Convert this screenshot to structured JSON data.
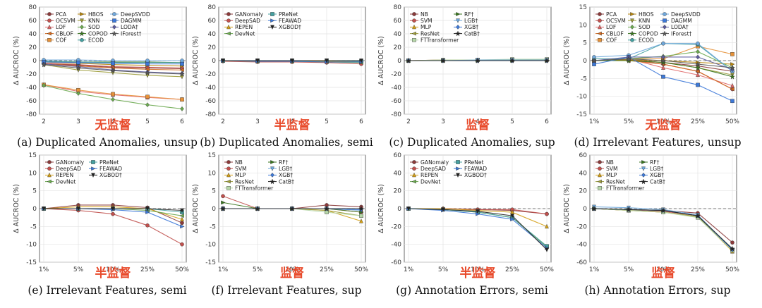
{
  "colors": {
    "PCA": "#8b3a3a",
    "OCSVM": "#c0504d",
    "LOF": "#e06666",
    "CBLOF": "#d2691e",
    "COF": "#e69138",
    "HBOS": "#b8860b",
    "KNN": "#9c9c3a",
    "SOD": "#6aa84f",
    "COPOD": "#38761d",
    "ECOD": "#45a0a0",
    "DeepSVDD": "#6fa8dc",
    "DAGMM": "#3c78d8",
    "LODA": "#5b5b9e",
    "IForest": "#555555",
    "GANomaly": "#8b3a3a",
    "DeepSAD": "#c0504d",
    "REPEN": "#d4a017",
    "DevNet": "#6aa84f",
    "PReNet": "#45a0a0",
    "FEAWAD": "#3c78d8",
    "XGBOD": "#222222",
    "NB": "#8b3a3a",
    "SVM": "#c0504d",
    "MLP": "#d4a017",
    "ResNet": "#9c9c3a",
    "FTTransformer": "#b6d7a8",
    "RF": "#38761d",
    "LGB": "#6fa8dc",
    "XGB": "#3c78d8",
    "CatB": "#222222",
    "baseline": "#777777",
    "annotation": "#e8492a"
  },
  "annotations": [
    "无监督",
    "半监督",
    "监督",
    "无监督",
    "半监督",
    "监督",
    "半监督",
    "监督"
  ],
  "chart_data": [
    {
      "id": "a",
      "type": "line",
      "title": "(a) Duplicated Anomalies, unsup",
      "annotation": "无监督",
      "xlabel": "",
      "ylabel": "Δ AUCROC (%)",
      "categories": [
        "2",
        "3",
        "4",
        "5",
        "6"
      ],
      "ylim": [
        -80,
        80
      ],
      "yticks": [
        -80,
        -60,
        -40,
        -20,
        0,
        20,
        40,
        60,
        80
      ],
      "legend": {
        "position": "top-left",
        "columns": 3,
        "entries": [
          "PCA",
          "OCSVM",
          "LOF",
          "CBLOF",
          "COF",
          "HBOS",
          "KNN",
          "SOD",
          "COPOD",
          "ECOD",
          "DeepSVDD",
          "DAGMM",
          "LODA†",
          "IForest†"
        ]
      },
      "series": [
        {
          "name": "PCA",
          "values": [
            -4,
            -7,
            -10,
            -11,
            -12
          ]
        },
        {
          "name": "OCSVM",
          "values": [
            -4,
            -6,
            -9,
            -10,
            -11
          ]
        },
        {
          "name": "LOF",
          "values": [
            -36,
            -46,
            -51,
            -55,
            -58
          ]
        },
        {
          "name": "CBLOF",
          "values": [
            -5,
            -8,
            -11,
            -13,
            -14
          ]
        },
        {
          "name": "COF",
          "values": [
            -36,
            -44,
            -50,
            -54,
            -58
          ]
        },
        {
          "name": "HBOS",
          "values": [
            -2,
            -4,
            -6,
            -7,
            -8
          ]
        },
        {
          "name": "KNN",
          "values": [
            -6,
            -14,
            -18,
            -22,
            -24
          ]
        },
        {
          "name": "SOD",
          "values": [
            -37,
            -49,
            -58,
            -66,
            -72
          ]
        },
        {
          "name": "COPOD",
          "values": [
            -1,
            -2,
            -2,
            -2,
            -3
          ]
        },
        {
          "name": "ECOD",
          "values": [
            -1,
            -2,
            -3,
            -3,
            -3
          ]
        },
        {
          "name": "DeepSVDD",
          "values": [
            1,
            1,
            0,
            0,
            0
          ]
        },
        {
          "name": "DAGMM",
          "values": [
            -2,
            -3,
            -4,
            -5,
            -5
          ]
        },
        {
          "name": "LODA†",
          "values": [
            -5,
            -9,
            -14,
            -17,
            -19
          ]
        },
        {
          "name": "IForest†",
          "values": [
            -6,
            -11,
            -15,
            -18,
            -20
          ]
        }
      ]
    },
    {
      "id": "b",
      "type": "line",
      "title": "(b) Duplicated Anomalies, semi",
      "annotation": "半监督",
      "xlabel": "",
      "ylabel": "Δ AUCROC (%)",
      "categories": [
        "2",
        "3",
        "4",
        "5",
        "6"
      ],
      "ylim": [
        -80,
        80
      ],
      "yticks": [
        -80,
        -60,
        -40,
        -20,
        0,
        20,
        40,
        60,
        80
      ],
      "legend": {
        "position": "top-left",
        "columns": 2,
        "entries": [
          "GANomaly",
          "DeepSAD",
          "REPEN",
          "DevNet",
          "PReNet",
          "FEAWAD",
          "XGBOD†"
        ]
      },
      "series": [
        {
          "name": "GANomaly",
          "values": [
            0,
            -1,
            0,
            -1,
            -1
          ]
        },
        {
          "name": "DeepSAD",
          "values": [
            -1,
            -2,
            -2,
            -3,
            -5
          ]
        },
        {
          "name": "REPEN",
          "values": [
            0,
            -1,
            -1,
            -1,
            -2
          ]
        },
        {
          "name": "DevNet",
          "values": [
            0,
            -1,
            -1,
            -2,
            -3
          ]
        },
        {
          "name": "PReNet",
          "values": [
            0,
            0,
            0,
            0,
            -1
          ]
        },
        {
          "name": "FEAWAD",
          "values": [
            0,
            -1,
            -1,
            -2,
            -2
          ]
        },
        {
          "name": "XGBOD†",
          "values": [
            0,
            0,
            0,
            0,
            0
          ]
        }
      ]
    },
    {
      "id": "c",
      "type": "line",
      "title": "(c) Duplicated Anomalies, sup",
      "annotation": "监督",
      "xlabel": "",
      "ylabel": "Δ AUCROC (%)",
      "categories": [
        "2",
        "3",
        "4",
        "5",
        "6"
      ],
      "ylim": [
        -80,
        80
      ],
      "yticks": [
        -80,
        -60,
        -40,
        -20,
        0,
        20,
        40,
        60,
        80
      ],
      "legend": {
        "position": "top-left",
        "columns": 2,
        "entries": [
          "NB",
          "SVM",
          "MLP",
          "ResNet",
          "FTTransformer",
          "RF†",
          "LGB†",
          "XGB†",
          "CatB†"
        ]
      },
      "series": [
        {
          "name": "NB",
          "values": [
            0,
            0,
            0,
            0,
            0
          ]
        },
        {
          "name": "SVM",
          "values": [
            0,
            1,
            1,
            1,
            1
          ]
        },
        {
          "name": "MLP",
          "values": [
            0,
            0,
            1,
            1,
            1
          ]
        },
        {
          "name": "ResNet",
          "values": [
            0,
            1,
            1,
            1,
            2
          ]
        },
        {
          "name": "FTTransformer",
          "values": [
            0,
            1,
            1,
            2,
            2
          ]
        },
        {
          "name": "RF†",
          "values": [
            0,
            0,
            0,
            0,
            0
          ]
        },
        {
          "name": "LGB†",
          "values": [
            0,
            0,
            1,
            1,
            1
          ]
        },
        {
          "name": "XGB†",
          "values": [
            0,
            0,
            0,
            0,
            0
          ]
        },
        {
          "name": "CatB†",
          "values": [
            0,
            0,
            0,
            0,
            0
          ]
        }
      ]
    },
    {
      "id": "d",
      "type": "line",
      "title": "(d) Irrelevant Features, unsup",
      "annotation": "无监督",
      "xlabel": "",
      "ylabel": "Δ AUCROC (%)",
      "categories": [
        "1%",
        "5%",
        "10%",
        "25%",
        "50%"
      ],
      "ylim": [
        -15,
        15
      ],
      "yticks": [
        -15,
        -10,
        -5,
        0,
        5,
        10,
        15
      ],
      "legend": {
        "position": "top-left",
        "columns": 3,
        "entries": [
          "PCA",
          "OCSVM",
          "LOF",
          "CBLOF",
          "COF",
          "HBOS",
          "KNN",
          "SOD",
          "COPOD",
          "ECOD",
          "DeepSVDD",
          "DAGMM",
          "LODA†",
          "IForest†"
        ]
      },
      "series": [
        {
          "name": "PCA",
          "values": [
            0,
            0.2,
            -0.5,
            -1.5,
            -3
          ]
        },
        {
          "name": "OCSVM",
          "values": [
            0,
            0.3,
            -1,
            -3,
            -8
          ]
        },
        {
          "name": "LOF",
          "values": [
            0,
            0.5,
            -2,
            -4,
            -7
          ]
        },
        {
          "name": "CBLOF",
          "values": [
            0,
            0,
            -1,
            -3,
            -8
          ]
        },
        {
          "name": "COF",
          "values": [
            0,
            0.5,
            0.5,
            4,
            1.8
          ]
        },
        {
          "name": "HBOS",
          "values": [
            0,
            0.2,
            0,
            -0.5,
            -1
          ]
        },
        {
          "name": "KNN",
          "values": [
            0,
            0,
            -0.5,
            -2,
            -4
          ]
        },
        {
          "name": "SOD",
          "values": [
            0,
            0.5,
            1.2,
            2.5,
            -2
          ]
        },
        {
          "name": "COPOD",
          "values": [
            0,
            0,
            -0.5,
            -2,
            -4.5
          ]
        },
        {
          "name": "ECOD",
          "values": [
            0.5,
            0.5,
            4.8,
            4.5,
            -3
          ]
        },
        {
          "name": "DeepSVDD",
          "values": [
            1,
            1.5,
            4.8,
            4.8,
            -3
          ]
        },
        {
          "name": "DAGMM",
          "values": [
            -1,
            1,
            -4.5,
            -6.8,
            -11.3
          ]
        },
        {
          "name": "LODA†",
          "values": [
            0,
            1,
            1,
            1,
            -2.5
          ]
        },
        {
          "name": "IForest†",
          "values": [
            0,
            0.5,
            0,
            -1,
            -2
          ]
        }
      ]
    },
    {
      "id": "e",
      "type": "line",
      "title": "(e) Irrelevant Features, semi",
      "annotation": "半监督",
      "xlabel": "",
      "ylabel": "Δ AUCROC (%)",
      "categories": [
        "1%",
        "5%",
        "10%",
        "25%",
        "50%"
      ],
      "ylim": [
        -15,
        15
      ],
      "yticks": [
        -15,
        -10,
        -5,
        0,
        5,
        10,
        15
      ],
      "legend": {
        "position": "top-left",
        "columns": 2,
        "entries": [
          "GANomaly",
          "DeepSAD",
          "REPEN",
          "DevNet",
          "PReNet",
          "FEAWAD",
          "XGBOD†"
        ]
      },
      "series": [
        {
          "name": "GANomaly",
          "values": [
            0,
            1,
            1,
            0.3,
            -4
          ]
        },
        {
          "name": "DeepSAD",
          "values": [
            0,
            -0.5,
            -1.5,
            -4.7,
            -10
          ]
        },
        {
          "name": "REPEN",
          "values": [
            0,
            0.5,
            0.5,
            0,
            -3
          ]
        },
        {
          "name": "DevNet",
          "values": [
            0,
            0,
            0,
            -0.5,
            -2
          ]
        },
        {
          "name": "PReNet",
          "values": [
            0,
            0,
            0,
            0,
            -1
          ]
        },
        {
          "name": "FEAWAD",
          "values": [
            0,
            0,
            -0.3,
            -1,
            -5
          ]
        },
        {
          "name": "XGBOD†",
          "values": [
            0,
            0,
            0,
            0,
            -0.5
          ]
        }
      ]
    },
    {
      "id": "f",
      "type": "line",
      "title": "(f) Irrelevant Features, sup",
      "annotation": "监督",
      "xlabel": "",
      "ylabel": "Δ AUCROC (%)",
      "categories": [
        "1%",
        "5%",
        "10%",
        "25%",
        "50%"
      ],
      "ylim": [
        -15,
        15
      ],
      "yticks": [
        -15,
        -10,
        -5,
        0,
        5,
        10,
        15
      ],
      "legend": {
        "position": "top-left",
        "columns": 2,
        "entries": [
          "NB",
          "SVM",
          "MLP",
          "ResNet",
          "FTTransformer",
          "RF†",
          "LGB†",
          "XGB†",
          "CatB†"
        ]
      },
      "series": [
        {
          "name": "NB",
          "values": [
            0,
            0,
            0,
            1,
            0.5
          ]
        },
        {
          "name": "SVM",
          "values": [
            3.5,
            0,
            0,
            0,
            -1
          ]
        },
        {
          "name": "MLP",
          "values": [
            0,
            0,
            0,
            -0.5,
            -3.5
          ]
        },
        {
          "name": "ResNet",
          "values": [
            0,
            0,
            0,
            -0.5,
            -2
          ]
        },
        {
          "name": "FTTransformer",
          "values": [
            0,
            0,
            0,
            -1,
            -2
          ]
        },
        {
          "name": "RF†",
          "values": [
            1.7,
            0,
            0,
            0,
            -1
          ]
        },
        {
          "name": "LGB†",
          "values": [
            0,
            0,
            0,
            0,
            -0.5
          ]
        },
        {
          "name": "XGB†",
          "values": [
            0,
            0,
            0,
            0,
            -0.3
          ]
        },
        {
          "name": "CatB†",
          "values": [
            0,
            0,
            0,
            0,
            0
          ]
        }
      ]
    },
    {
      "id": "g",
      "type": "line",
      "title": "(g) Annotation Errors, semi",
      "annotation": "半监督",
      "xlabel": "",
      "ylabel": "Δ AUCROC (%)",
      "categories": [
        "1%",
        "5%",
        "10%",
        "25%",
        "50%"
      ],
      "ylim": [
        -60,
        60
      ],
      "yticks": [
        -60,
        -40,
        -20,
        0,
        20,
        40,
        60
      ],
      "legend": {
        "position": "top-left",
        "columns": 2,
        "entries": [
          "GANomaly",
          "DeepSAD",
          "REPEN",
          "DevNet",
          "PReNet",
          "FEAWAD",
          "XGBOD†"
        ]
      },
      "series": [
        {
          "name": "GANomaly",
          "values": [
            0,
            0,
            -1,
            -2,
            -6
          ]
        },
        {
          "name": "DeepSAD",
          "values": [
            0,
            0,
            -1,
            -1,
            -6
          ]
        },
        {
          "name": "REPEN",
          "values": [
            0,
            0,
            -2,
            -4,
            -20
          ]
        },
        {
          "name": "DevNet",
          "values": [
            0,
            -1,
            -4,
            -10,
            -43
          ]
        },
        {
          "name": "PReNet",
          "values": [
            0,
            -1,
            -4,
            -10,
            -42
          ]
        },
        {
          "name": "FEAWAD",
          "values": [
            0,
            -2,
            -6,
            -12,
            -44
          ]
        },
        {
          "name": "XGBOD†",
          "values": [
            0,
            -1,
            -3,
            -8,
            -46
          ]
        }
      ]
    },
    {
      "id": "h",
      "type": "line",
      "title": "(h) Annotation Errors, sup",
      "annotation": "监督",
      "xlabel": "",
      "ylabel": "Δ AUCROC (%)",
      "categories": [
        "1%",
        "5%",
        "10%",
        "25%",
        "50%"
      ],
      "ylim": [
        -60,
        60
      ],
      "yticks": [
        -60,
        -40,
        -20,
        0,
        20,
        40,
        60
      ],
      "legend": {
        "position": "top-left",
        "columns": 2,
        "entries": [
          "NB",
          "SVM",
          "MLP",
          "ResNet",
          "FTTransformer",
          "RF†",
          "LGB†",
          "XGB†",
          "CatB†"
        ]
      },
      "series": [
        {
          "name": "NB",
          "values": [
            0,
            -1,
            -2,
            -5,
            -38
          ]
        },
        {
          "name": "SVM",
          "values": [
            0,
            -2,
            -3,
            -8,
            -47
          ]
        },
        {
          "name": "MLP",
          "values": [
            0,
            -2,
            -4,
            -9,
            -48
          ]
        },
        {
          "name": "ResNet",
          "values": [
            0,
            -2,
            -4,
            -9,
            -46
          ]
        },
        {
          "name": "FTTransformer",
          "values": [
            0,
            -2,
            -4,
            -10,
            -47
          ]
        },
        {
          "name": "RF†",
          "values": [
            0,
            -1,
            -2,
            -8,
            -45
          ]
        },
        {
          "name": "LGB†",
          "values": [
            2,
            1,
            -1,
            -7,
            -46
          ]
        },
        {
          "name": "XGB†",
          "values": [
            0,
            -1,
            -2,
            -8,
            -46
          ]
        },
        {
          "name": "CatB†",
          "values": [
            0,
            -1,
            -2,
            -8,
            -45
          ]
        }
      ]
    }
  ]
}
